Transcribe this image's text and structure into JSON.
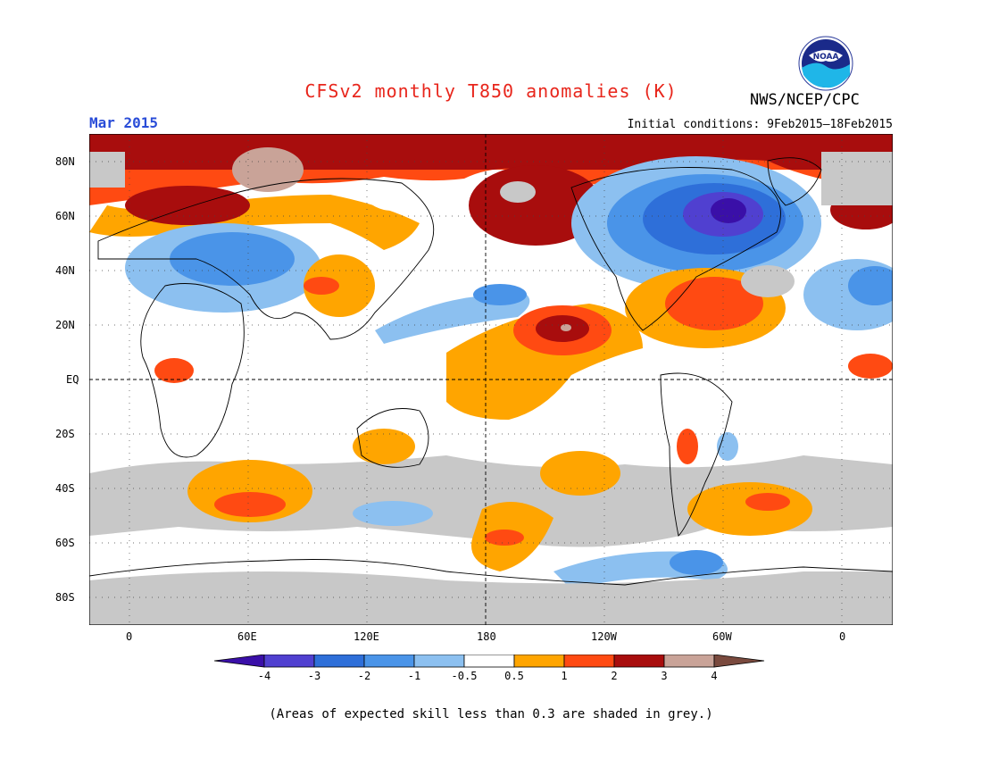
{
  "header": {
    "title": "CFSv2 monthly T850 anomalies (K)",
    "organization": "NWS/NCEP/CPC",
    "logo_text": "NOAA",
    "valid_month": "Mar 2015",
    "initial_conditions": "Initial conditions: 9Feb2015–18Feb2015"
  },
  "map": {
    "lat_labels": [
      "80N",
      "60N",
      "40N",
      "20N",
      "EQ",
      "20S",
      "40S",
      "60S",
      "80S"
    ],
    "lon_labels": [
      "0",
      "60E",
      "120E",
      "180",
      "120W",
      "60W",
      "0"
    ]
  },
  "legend": {
    "tick_labels": [
      "-4",
      "-3",
      "-2",
      "-1",
      "-0.5",
      "0.5",
      "1",
      "2",
      "3",
      "4"
    ],
    "colors": [
      "#3a0fa8",
      "#5040d0",
      "#2e6fd9",
      "#4a94e8",
      "#8cc0f0",
      "#ffffff",
      "#ffa500",
      "#ff4a12",
      "#a80d0d",
      "#c9a398",
      "#7a4a3e"
    ]
  },
  "footnote": "(Areas of expected skill less than 0.3 are shaded in grey.)",
  "colors": {
    "title": "#e8261c",
    "month": "#2a4dd8",
    "grey_low_skill": "#c8c8c8"
  }
}
